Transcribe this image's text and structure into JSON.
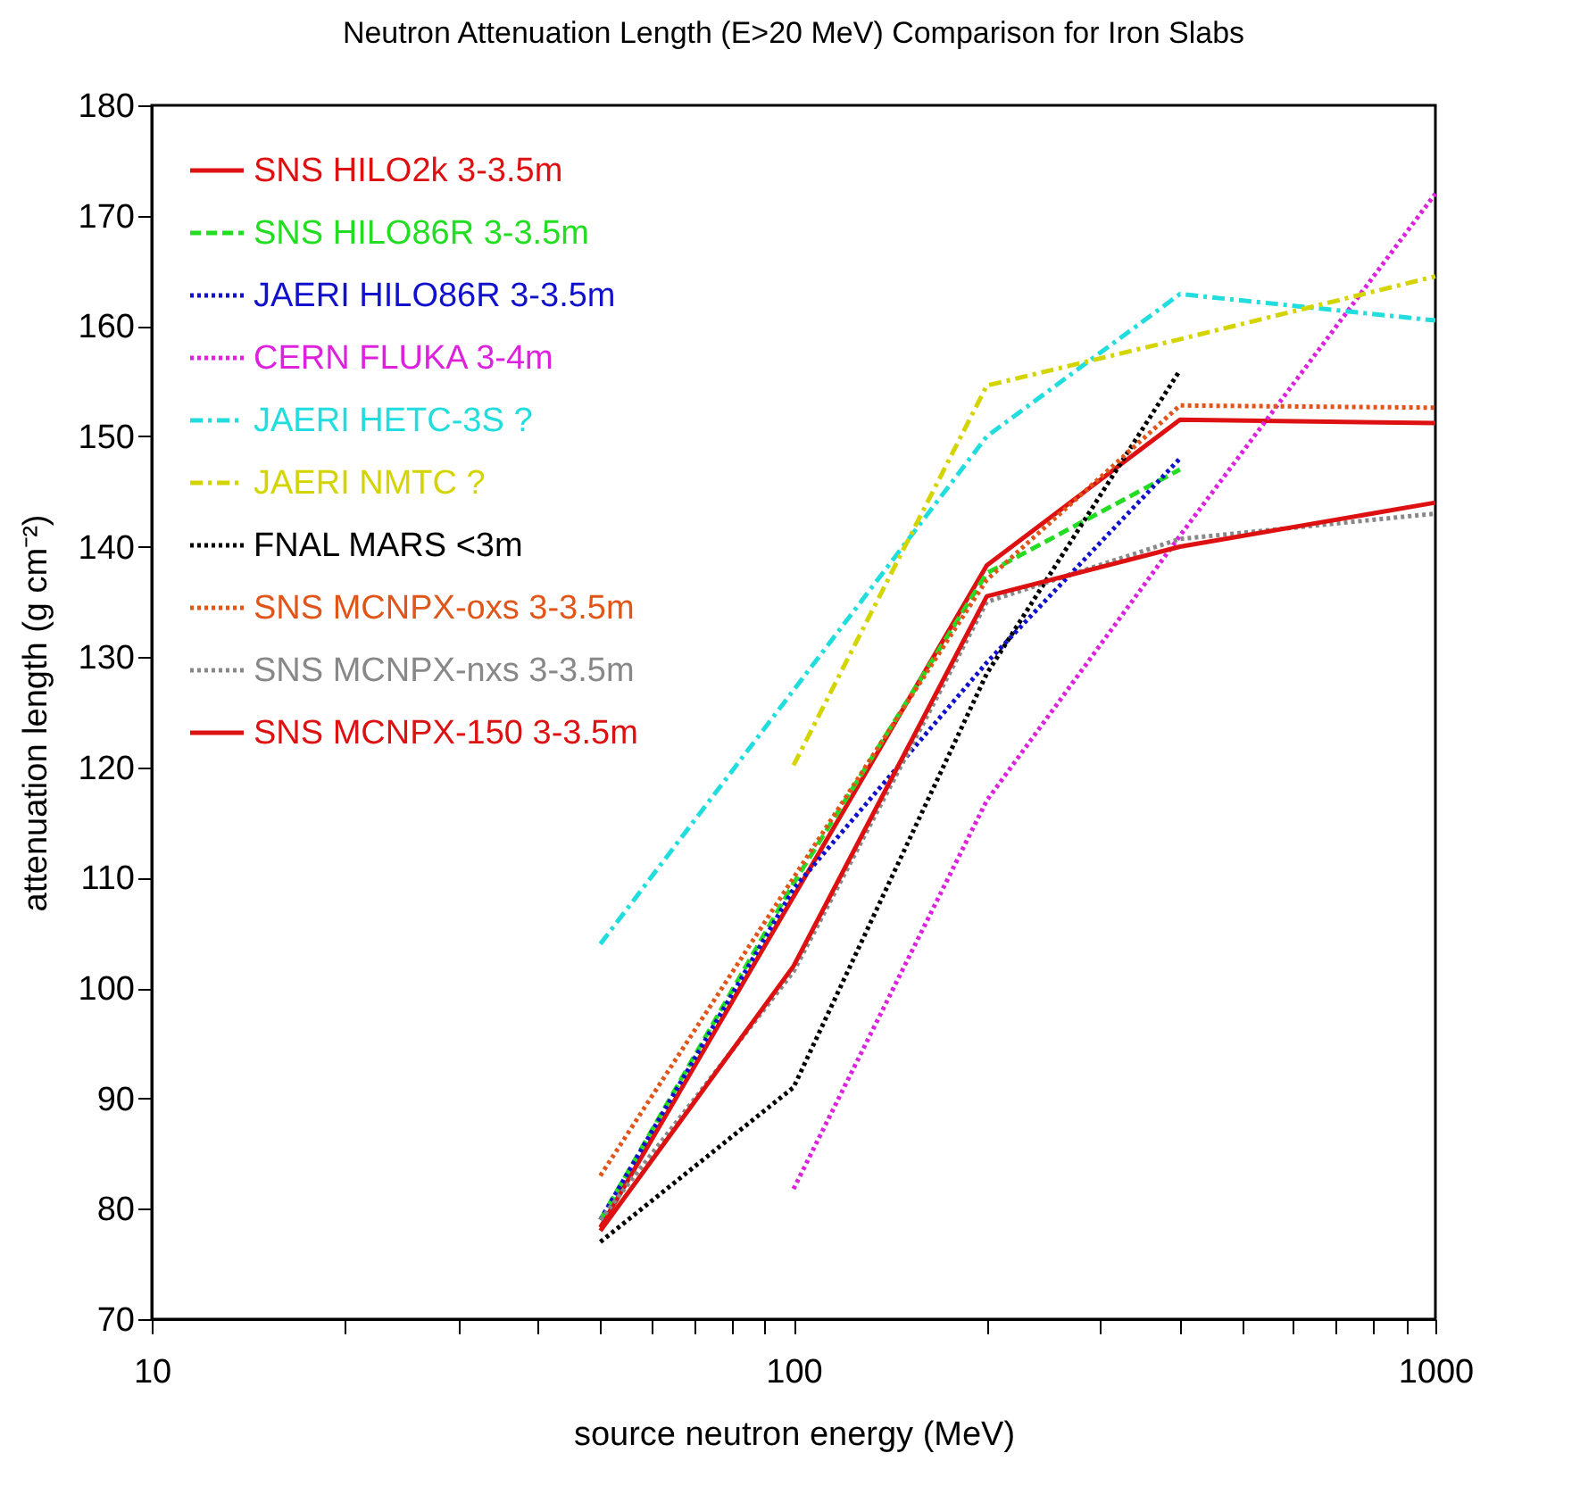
{
  "chart_data": {
    "type": "line",
    "title": "Neutron Attenuation Length (E>20 MeV) Comparison for Iron Slabs",
    "xlabel": "source neutron energy (MeV)",
    "ylabel": "attenuation length (g cm⁻²)",
    "log": "x",
    "xlim": [
      10,
      1000
    ],
    "xticks": [
      10,
      {
        "value": 20,
        "label": null
      },
      {
        "value": 30,
        "label": null
      },
      {
        "value": 40,
        "label": null
      },
      {
        "value": 50,
        "label": null
      },
      {
        "value": 60,
        "label": null
      },
      {
        "value": 70,
        "label": null
      },
      {
        "value": 80,
        "label": null
      },
      {
        "value": 90,
        "label": null
      },
      100,
      {
        "value": 200,
        "label": null
      },
      {
        "value": 300,
        "label": null
      },
      {
        "value": 400,
        "label": null
      },
      {
        "value": 500,
        "label": null
      },
      {
        "value": 600,
        "label": null
      },
      {
        "value": 700,
        "label": null
      },
      {
        "value": 800,
        "label": null
      },
      {
        "value": 900,
        "label": null
      },
      1000
    ],
    "ylim": [
      70,
      180
    ],
    "yticks": [
      70,
      80,
      90,
      100,
      110,
      120,
      130,
      140,
      150,
      160,
      170,
      180
    ],
    "grid": false,
    "legend": "top left",
    "marker": "none",
    "series": [
      {
        "name": "SNS HILO2k 3-3.5m",
        "color": "#dd1111",
        "line_style": "solid",
        "x": [
          50,
          100,
          200,
          400,
          1000
        ],
        "values": [
          78.3,
          108.3,
          138.3,
          151.5,
          151.2
        ]
      },
      {
        "name": "SNS HILO86R 3-3.5m",
        "color": "#22dd22",
        "line_style": "dashed",
        "x": [
          50,
          100,
          200,
          400
        ],
        "values": [
          79,
          109.5,
          137.6,
          147
        ]
      },
      {
        "name": "JAERI HILO86R 3-3.5m",
        "color": "#1111cc",
        "line_style": "dotted",
        "x": [
          50,
          100,
          200,
          400
        ],
        "values": [
          79,
          109,
          129.5,
          148
        ]
      },
      {
        "name": "CERN FLUKA 3-4m",
        "color": "#dd22dd",
        "line_style": "dotted",
        "x": [
          100,
          200,
          400,
          1000
        ],
        "values": [
          81.8,
          117,
          141,
          172
        ]
      },
      {
        "name": "JAERI HETC-3S ?",
        "color": "#22dddd",
        "line_style": "dashdot",
        "x": [
          50,
          200,
          400,
          1000
        ],
        "values": [
          104,
          150,
          162.9,
          160.5
        ]
      },
      {
        "name": "JAERI NMTC ?",
        "color": "#d4d400",
        "line_style": "dashdot",
        "x": [
          100,
          200,
          400,
          1000
        ],
        "values": [
          120.2,
          154.6,
          158.8,
          164.5
        ]
      },
      {
        "name": "FNAL MARS <3m",
        "color": "#000000",
        "line_style": "dotted",
        "x": [
          50,
          100,
          200,
          400
        ],
        "values": [
          77,
          91,
          128.5,
          156
        ]
      },
      {
        "name": "SNS MCNPX-oxs 3-3.5m",
        "color": "#e0561a",
        "line_style": "dotted",
        "x": [
          50,
          100,
          200,
          400,
          1000
        ],
        "values": [
          83,
          110,
          137,
          152.8,
          152.6
        ]
      },
      {
        "name": "SNS MCNPX-nxs 3-3.5m",
        "color": "#888888",
        "line_style": "dotted",
        "x": [
          50,
          100,
          200,
          400,
          1000
        ],
        "values": [
          79,
          101.5,
          135,
          140.7,
          143
        ]
      },
      {
        "name": "SNS MCNPX-150 3-3.5m",
        "color": "#dd1111",
        "line_style": "solid",
        "x": [
          50,
          100,
          200,
          400,
          1000
        ],
        "values": [
          78,
          102,
          135.5,
          140,
          144
        ]
      }
    ]
  }
}
